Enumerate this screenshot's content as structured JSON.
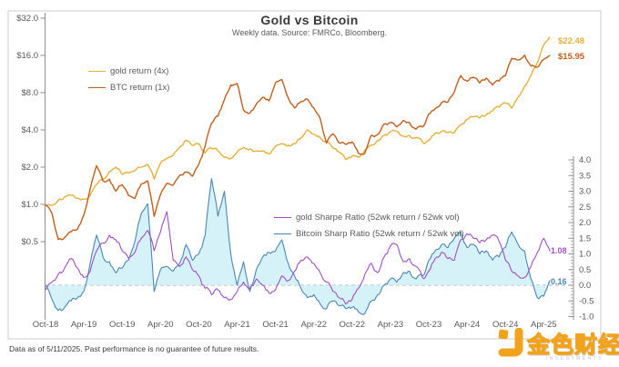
{
  "header": {
    "title": "Gold vs Bitcoin",
    "subtitle": "Weekly data.  Source: FMRCo, Bloomberg."
  },
  "footer": {
    "disclaimer": "Data as of 5/11/2025. Past performance is no guarantee of future results."
  },
  "watermark": {
    "brand_text": "金色财经",
    "sub_text": "INVESTMENTS",
    "color": "#F2A21B"
  },
  "chart_data": {
    "type": "line",
    "title": "Gold vs Bitcoin",
    "subtitle": "Weekly data.  Source: FMRCo, Bloomberg.",
    "start_month": "2018-10",
    "end_month": "2025-05",
    "points_per_month": 1,
    "x_axis": {
      "tick_labels": [
        "Oct-18",
        "Apr-19",
        "Oct-19",
        "Apr-20",
        "Oct-20",
        "Apr-21",
        "Oct-21",
        "Apr-22",
        "Oct-22",
        "Apr-23",
        "Oct-23",
        "Apr-24",
        "Oct-24",
        "Apr-25"
      ]
    },
    "price_axis": {
      "side": "left",
      "scale": "log2",
      "unit": "$ growth of $1",
      "tick_labels": [
        "$32.0",
        "$16.0",
        "$8.0",
        "$4.0",
        "$2.0",
        "$1.0",
        "$0.5"
      ],
      "tick_values": [
        32,
        16,
        8,
        4,
        2,
        1,
        0.5
      ]
    },
    "sharpe_axis": {
      "side": "right",
      "scale": "linear",
      "min": -1.0,
      "max": 4.0,
      "tick_labels": [
        "4.0",
        "3.5",
        "3.0",
        "2.5",
        "2.0",
        "1.5",
        "1.0",
        "0.5",
        "0.0",
        "-0.5",
        "-1.0"
      ],
      "tick_values": [
        4.0,
        3.5,
        3.0,
        2.5,
        2.0,
        1.5,
        1.0,
        0.5,
        0.0,
        -0.5,
        -1.0
      ],
      "minor_tick_step": 0.1
    },
    "zero_line": {
      "value": 0,
      "style": "dashed"
    },
    "grid": false,
    "series": [
      {
        "id": "gold_price",
        "name": "gold return (4x)",
        "axis": "price",
        "color": "#E4B13C",
        "end_label": "$22.48",
        "end_value": 22.48,
        "values": [
          0.97,
          0.98,
          1.08,
          1.15,
          1.18,
          1.12,
          1.1,
          1.18,
          1.45,
          1.6,
          1.85,
          2.0,
          1.75,
          1.8,
          1.88,
          2.0,
          2.1,
          1.6,
          2.15,
          2.35,
          2.5,
          2.9,
          3.3,
          3.0,
          3.1,
          2.6,
          2.85,
          2.7,
          2.4,
          2.35,
          2.65,
          2.9,
          2.8,
          2.7,
          2.7,
          2.55,
          2.95,
          3.1,
          3.0,
          3.1,
          3.45,
          4.0,
          3.7,
          3.45,
          3.2,
          2.85,
          2.65,
          2.3,
          2.45,
          2.4,
          2.75,
          3.0,
          3.3,
          3.6,
          3.85,
          3.9,
          3.55,
          3.6,
          3.45,
          3.2,
          3.3,
          3.75,
          3.9,
          3.8,
          3.8,
          4.4,
          4.9,
          5.1,
          5.0,
          5.3,
          5.7,
          6.1,
          6.6,
          6.0,
          7.4,
          9.0,
          11.0,
          14.0,
          19.5,
          22.48
        ]
      },
      {
        "id": "btc_price",
        "name": "BTC return (1x)",
        "axis": "price",
        "color": "#C05F1D",
        "end_label": "$15.95",
        "end_value": 15.95,
        "values": [
          1.0,
          0.85,
          0.52,
          0.54,
          0.6,
          0.63,
          0.82,
          1.34,
          2.05,
          1.55,
          1.6,
          1.28,
          1.44,
          1.18,
          1.12,
          1.46,
          1.55,
          0.8,
          1.2,
          1.48,
          1.43,
          1.72,
          1.83,
          1.69,
          2.11,
          2.97,
          4.53,
          5.16,
          7.03,
          9.22,
          9.5,
          5.78,
          5.47,
          6.48,
          7.34,
          6.86,
          9.61,
          10.2,
          7.27,
          6.02,
          6.8,
          7.11,
          6.02,
          4.95,
          3.13,
          3.72,
          3.13,
          3.05,
          3.2,
          2.58,
          2.59,
          3.61,
          3.67,
          4.45,
          4.58,
          4.22,
          4.77,
          4.58,
          4.06,
          4.22,
          5.39,
          5.91,
          6.64,
          6.72,
          8.1,
          11.0,
          9.92,
          10.63,
          9.61,
          10.47,
          9.22,
          9.92,
          10.94,
          15.16,
          14.69,
          16.09,
          13.13,
          12.89,
          14.84,
          15.95
        ]
      },
      {
        "id": "gold_sharpe",
        "name": "gold Sharpe Ratio (52wk return / 52wk vol)",
        "axis": "sharpe",
        "color": "#A14FC4",
        "end_label": "1.08",
        "end_value": 1.08,
        "values": [
          -0.15,
          0.1,
          0.35,
          0.55,
          0.85,
          0.55,
          0.25,
          0.45,
          1.1,
          1.35,
          1.6,
          1.45,
          1.1,
          0.85,
          1.05,
          1.5,
          1.75,
          1.1,
          1.7,
          2.35,
          0.8,
          0.6,
          0.9,
          0.5,
          0.3,
          -0.1,
          -0.3,
          -0.15,
          -0.4,
          -0.45,
          -0.2,
          0.1,
          -0.1,
          0.2,
          0.0,
          -0.25,
          -0.15,
          0.3,
          0.15,
          0.45,
          0.8,
          0.9,
          0.7,
          0.4,
          0.1,
          -0.2,
          -0.4,
          -0.6,
          -0.45,
          -0.1,
          0.35,
          0.7,
          0.4,
          0.9,
          1.25,
          1.3,
          0.75,
          0.85,
          0.6,
          0.25,
          0.45,
          0.85,
          1.05,
          0.85,
          0.8,
          1.45,
          1.65,
          1.5,
          1.35,
          1.45,
          1.6,
          1.4,
          0.8,
          0.45,
          0.3,
          0.25,
          0.6,
          1.05,
          1.5,
          1.08
        ]
      },
      {
        "id": "btc_sharpe",
        "name": "Bitcoin Sharp Ratio (52wk return / 52wk vol)",
        "axis": "sharpe",
        "color": "#4C86B4",
        "fill": "#CBEFF7",
        "end_label": "0.16",
        "end_value": 0.16,
        "values": [
          0.0,
          -0.45,
          -0.8,
          -0.7,
          -0.5,
          -0.4,
          -0.2,
          0.7,
          1.6,
          0.9,
          0.75,
          0.4,
          0.55,
          0.8,
          1.4,
          2.3,
          2.6,
          -0.2,
          0.5,
          0.6,
          0.45,
          0.7,
          1.3,
          0.8,
          1.0,
          1.6,
          3.4,
          2.2,
          3.0,
          1.0,
          0.0,
          0.75,
          -0.2,
          0.5,
          0.9,
          1.05,
          1.1,
          1.45,
          0.7,
          0.3,
          -0.1,
          -0.4,
          -0.3,
          -0.6,
          -0.75,
          -0.5,
          -0.65,
          -0.75,
          -0.7,
          -0.85,
          -0.9,
          -0.5,
          -0.3,
          0.0,
          0.2,
          0.1,
          0.4,
          0.45,
          0.2,
          0.3,
          0.8,
          1.1,
          1.3,
          1.2,
          1.5,
          1.7,
          1.2,
          1.3,
          1.0,
          1.1,
          0.8,
          0.9,
          1.2,
          1.7,
          1.3,
          1.1,
          0.2,
          -0.4,
          -0.35,
          0.16
        ]
      }
    ]
  }
}
